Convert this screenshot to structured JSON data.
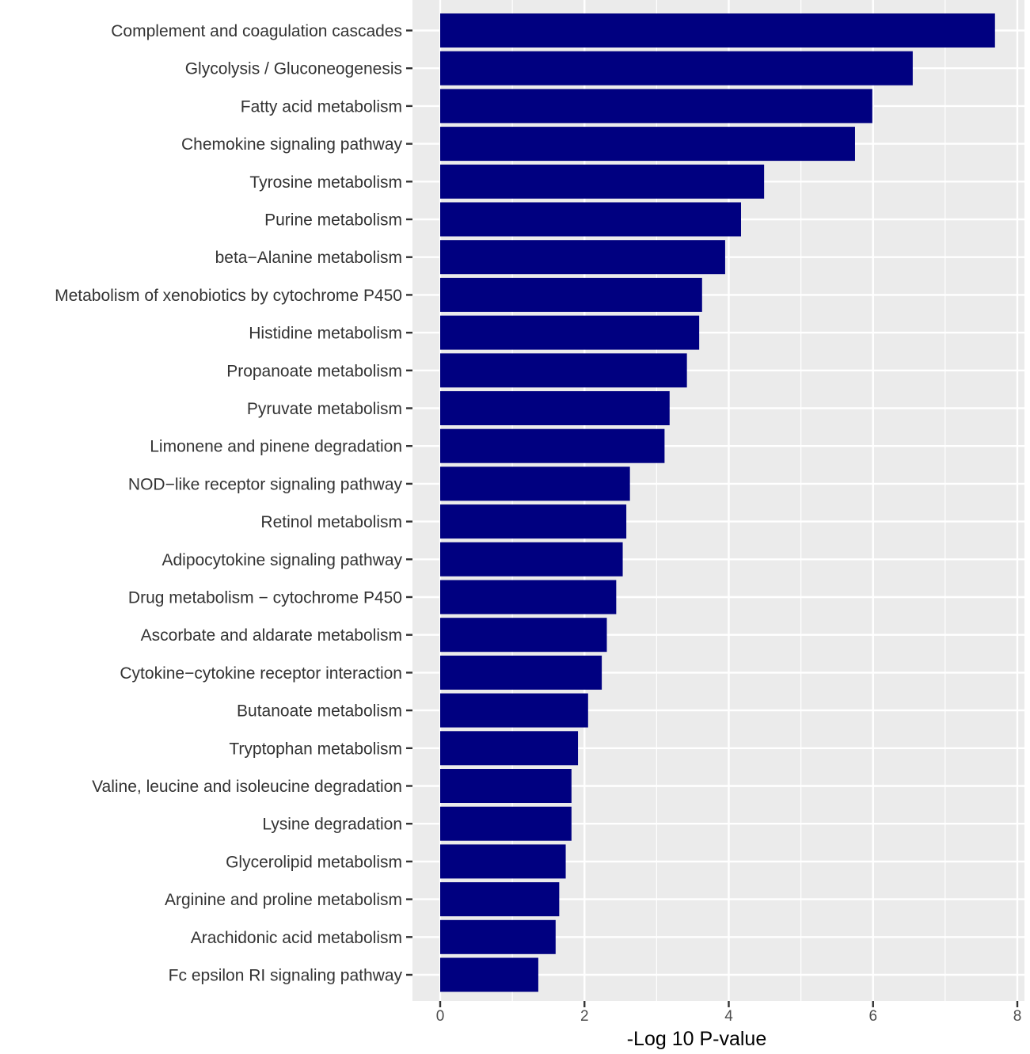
{
  "chart_data": {
    "type": "bar",
    "orientation": "horizontal",
    "categories": [
      "Complement and coagulation cascades",
      "Glycolysis / Gluconeogenesis",
      "Fatty acid metabolism",
      "Chemokine signaling pathway",
      "Tyrosine metabolism",
      "Purine metabolism",
      "beta−Alanine metabolism",
      "Metabolism of xenobiotics by cytochrome P450",
      "Histidine metabolism",
      "Propanoate metabolism",
      "Pyruvate metabolism",
      "Limonene and pinene degradation",
      "NOD−like receptor signaling pathway",
      "Retinol metabolism",
      "Adipocytokine signaling pathway",
      "Drug metabolism − cytochrome P450",
      "Ascorbate and aldarate metabolism",
      "Cytokine−cytokine receptor interaction",
      "Butanoate metabolism",
      "Tryptophan metabolism",
      "Valine, leucine and isoleucine degradation",
      "Lysine degradation",
      "Glycerolipid metabolism",
      "Arginine and proline metabolism",
      "Arachidonic acid metabolism",
      "Fc epsilon RI signaling pathway"
    ],
    "values": [
      7.69,
      6.55,
      5.99,
      5.75,
      4.49,
      4.17,
      3.95,
      3.63,
      3.59,
      3.42,
      3.18,
      3.11,
      2.63,
      2.58,
      2.53,
      2.44,
      2.31,
      2.24,
      2.05,
      1.91,
      1.82,
      1.82,
      1.74,
      1.65,
      1.6,
      1.36
    ],
    "xlabel": "-Log 10 P-value",
    "ylabel": "",
    "title": "",
    "xlim": [
      -0.37,
      8.05
    ],
    "xticks": [
      0,
      2,
      4,
      6,
      8
    ],
    "grid": true,
    "colors": {
      "bar": "#000080",
      "panel": "#ebebeb",
      "grid": "#ffffff",
      "tick": "#333333"
    }
  }
}
